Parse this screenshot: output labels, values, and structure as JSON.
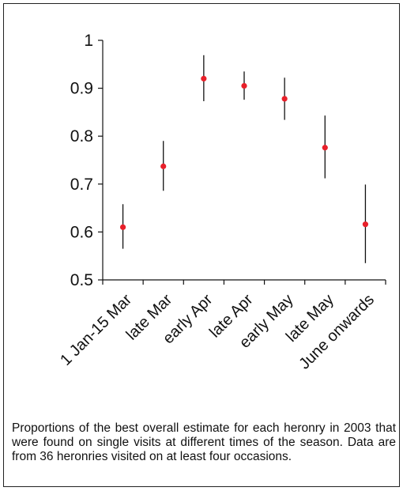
{
  "chart_data": {
    "type": "scatter",
    "title": "",
    "xlabel": "",
    "ylabel": "",
    "categories": [
      "1 Jan-15 Mar",
      "late Mar",
      "early Apr",
      "late Apr",
      "early May",
      "late May",
      "June onwards"
    ],
    "values": [
      0.61,
      0.737,
      0.92,
      0.905,
      0.878,
      0.776,
      0.616
    ],
    "error_low": [
      0.565,
      0.686,
      0.873,
      0.876,
      0.834,
      0.712,
      0.535
    ],
    "error_high": [
      0.658,
      0.79,
      0.969,
      0.935,
      0.922,
      0.843,
      0.699
    ],
    "ylim": [
      0.5,
      1.0
    ],
    "yticks": [
      0.5,
      0.6,
      0.7,
      0.8,
      0.9,
      1.0
    ],
    "ytick_labels": [
      "0.5",
      "0.6",
      "0.7",
      "0.8",
      "0.9",
      "1"
    ],
    "grid": false,
    "marker_color": "#e8202a",
    "errorbar_color": "#111111"
  },
  "caption": "Proportions of the best overall estimate for each heronry in 2003 that were found on single visits at different times of the season. Data are from 36 heronries visited on at least four occasions."
}
